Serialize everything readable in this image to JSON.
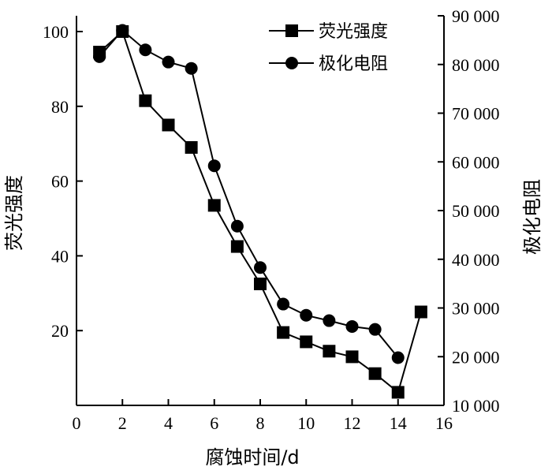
{
  "chart_data": {
    "type": "line",
    "xlabel": "腐蚀时间/d",
    "ylabel_left": "荧光强度",
    "ylabel_right": "极化电阻",
    "xlim": [
      0,
      16
    ],
    "ylim_left": [
      0,
      100
    ],
    "ylim_right": [
      10000,
      90000
    ],
    "x_ticks": [
      0,
      2,
      4,
      6,
      8,
      10,
      12,
      14,
      16
    ],
    "x_tick_labels": [
      "0",
      "2",
      "4",
      "6",
      "8",
      "10",
      "12",
      "14",
      "16"
    ],
    "y_left_ticks": [
      20,
      40,
      60,
      80,
      100
    ],
    "y_left_tick_labels": [
      "20",
      "40",
      "60",
      "80",
      "100"
    ],
    "y_right_ticks": [
      10000,
      20000,
      30000,
      40000,
      50000,
      60000,
      70000,
      80000,
      90000
    ],
    "y_right_tick_labels": [
      "10 000",
      "20 000",
      "30 000",
      "40 000",
      "50 000",
      "60 000",
      "70 000",
      "80 000",
      "90 000"
    ],
    "grid": false,
    "legend_position": "top-right",
    "series": [
      {
        "name": "荧光强度",
        "axis": "left",
        "marker": "square",
        "x": [
          1,
          2,
          3,
          4,
          5,
          6,
          7,
          8,
          9,
          10,
          11,
          12,
          13,
          14,
          15
        ],
        "y": [
          94.5,
          100,
          81.5,
          75,
          69,
          53.5,
          42.5,
          32.5,
          19.5,
          17,
          14.5,
          13,
          8.5,
          3.5,
          25
        ]
      },
      {
        "name": "极化电阻",
        "axis": "right",
        "marker": "circle",
        "x": [
          1,
          2,
          3,
          4,
          5,
          6,
          7,
          8,
          9,
          10,
          11,
          12,
          13,
          14
        ],
        "y": [
          81600,
          87000,
          83000,
          80500,
          79200,
          59200,
          46800,
          38300,
          30800,
          28500,
          27400,
          26200,
          25600,
          19800
        ]
      }
    ]
  }
}
